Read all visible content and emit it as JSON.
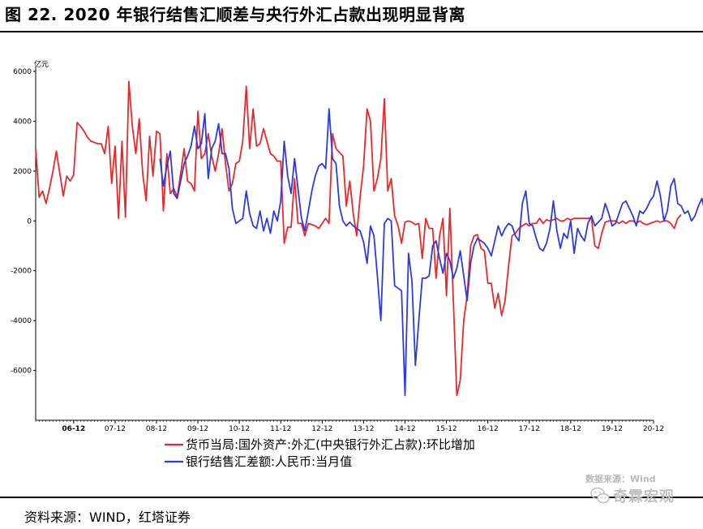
{
  "figure": {
    "title": "图 22. 2020 年银行结售汇顺差与央行外汇占款出现明显背离",
    "source": "资料来源：WIND，红塔证券",
    "watermark": "数据来源：Wind",
    "wechat_label": "奇霖宏观"
  },
  "colors": {
    "red": "#e8292c",
    "blue": "#2b3be0",
    "axis": "#000000"
  },
  "chart_data": {
    "type": "line",
    "unit_label": "亿元",
    "ylim": [
      -8000,
      6000
    ],
    "yticks": [
      -6000,
      -4000,
      -2000,
      0,
      2000,
      4000,
      6000
    ],
    "ytick_labels": [
      "-6000",
      "-4000",
      "-2000",
      "0",
      "2000",
      "4000",
      "6000"
    ],
    "xlim": [
      "2006-01",
      "2020-12"
    ],
    "xticks": [
      "06-12",
      "07-12",
      "08-12",
      "09-12",
      "10-12",
      "11-12",
      "12-12",
      "13-12",
      "14-12",
      "15-12",
      "16-12",
      "17-12",
      "18-12",
      "19-12",
      "20-12"
    ],
    "grid": false,
    "legend_position": "bottom",
    "series": [
      {
        "name": "货币当局:国外资产:外汇(中央银行外汇占款):环比增加",
        "color": "#e8292c",
        "start": "2006-01",
        "freq": "monthly",
        "values": [
          2900,
          950,
          1200,
          700,
          1300,
          2000,
          2800,
          1900,
          1000,
          1800,
          1600,
          1850,
          3950,
          3800,
          3600,
          3350,
          3200,
          3150,
          3100,
          3100,
          2700,
          3800,
          1500,
          3000,
          100,
          3200,
          150,
          5600,
          3800,
          2700,
          4100,
          1900,
          800,
          3400,
          1800,
          3600,
          3500,
          400,
          2700,
          1100,
          1300,
          950,
          1900,
          2900,
          1600,
          1500,
          1200,
          4400,
          2500,
          2700,
          3500,
          2600,
          2000,
          2700,
          3700,
          2300,
          1200,
          1500,
          2300,
          2400,
          3200,
          5400,
          2900,
          4500,
          3000,
          3100,
          3700,
          3200,
          2700,
          2600,
          2400,
          2400,
          -900,
          -250,
          -250,
          1700,
          -100,
          -100,
          -600,
          -100,
          -150,
          -200,
          -300,
          -100,
          100,
          -100,
          3500,
          2900,
          2750,
          2600,
          600,
          1600,
          300,
          -600,
          1000,
          2200,
          4500,
          4000,
          1200,
          1700,
          2500,
          4900,
          1200,
          1700,
          200,
          -200,
          -900,
          -50,
          0,
          -50,
          -150,
          -100,
          -1500,
          100,
          -300,
          -300,
          -2300,
          -600,
          100,
          -3000,
          500,
          -3200,
          -7000,
          -6400,
          -4000,
          -3000,
          -1000,
          -600,
          -550,
          -1100,
          -1200,
          -2500,
          -2500,
          -3500,
          -2900,
          -3800,
          -3200,
          -1800,
          -600,
          -500,
          -300,
          -200,
          -100,
          -200,
          -100,
          -100,
          100,
          -100,
          50,
          0,
          50,
          100,
          0,
          0,
          100,
          50,
          100,
          100,
          100,
          100,
          100,
          100,
          -1000,
          -1100,
          -500,
          -50,
          0,
          0,
          0,
          -100,
          0,
          -100,
          0,
          0,
          -100,
          0,
          -100,
          -150,
          -100,
          -50,
          0,
          -50,
          0,
          0,
          -100,
          -300,
          100,
          250
        ]
      },
      {
        "name": "银行结售汇差额:人民币:当月值",
        "color": "#2b3be0",
        "start": "2009-01",
        "freq": "monthly",
        "values": [
          2500,
          1400,
          2200,
          2800,
          1100,
          900,
          1600,
          2300,
          2600,
          3000,
          3800,
          2900,
          3100,
          4300,
          1700,
          2900,
          3200,
          3900,
          2700,
          2700,
          2100,
          500,
          -100,
          0,
          100,
          1200,
          300,
          -200,
          -300,
          400,
          -400,
          100,
          -500,
          400,
          0,
          800,
          3200,
          1800,
          1100,
          2500,
          1300,
          100,
          -400,
          400,
          1200,
          1800,
          2200,
          2300,
          2100,
          4500,
          2500,
          2300,
          600,
          0,
          -200,
          -50,
          -200,
          -300,
          -400,
          -850,
          -1700,
          -200,
          -600,
          -2200,
          -4000,
          -100,
          100,
          0,
          -2600,
          -2700,
          -2800,
          -7000,
          -1300,
          -2400,
          -5800,
          -4000,
          -2300,
          -2300,
          -2200,
          -1000,
          -800,
          -1500,
          -2100,
          -1300,
          -1600,
          -2300,
          -1900,
          -1200,
          -2200,
          -3200,
          -1700,
          -1000,
          -700,
          -800,
          -900,
          -1100,
          -1400,
          -800,
          -200,
          -600,
          -300,
          -100,
          -200,
          -600,
          -800,
          700,
          1200,
          -100,
          -200,
          -700,
          -1100,
          -1200,
          -900,
          -300,
          800,
          -400,
          -1100,
          -500,
          -700,
          0,
          -1300,
          -300,
          -600,
          -800,
          -100,
          200,
          -200,
          -50,
          100,
          700,
          300,
          -200,
          -100,
          300,
          700,
          800,
          500,
          200,
          -200,
          400,
          300,
          500,
          800,
          1000,
          1600,
          1000,
          0,
          400,
          1400,
          1700,
          700,
          600,
          300,
          400,
          0,
          200,
          600,
          900,
          300,
          -300,
          0,
          4300,
          1200,
          -400,
          700,
          -800,
          -500,
          -300,
          400,
          800,
          1500,
          4300,
          2600,
          1800
        ]
      }
    ]
  }
}
